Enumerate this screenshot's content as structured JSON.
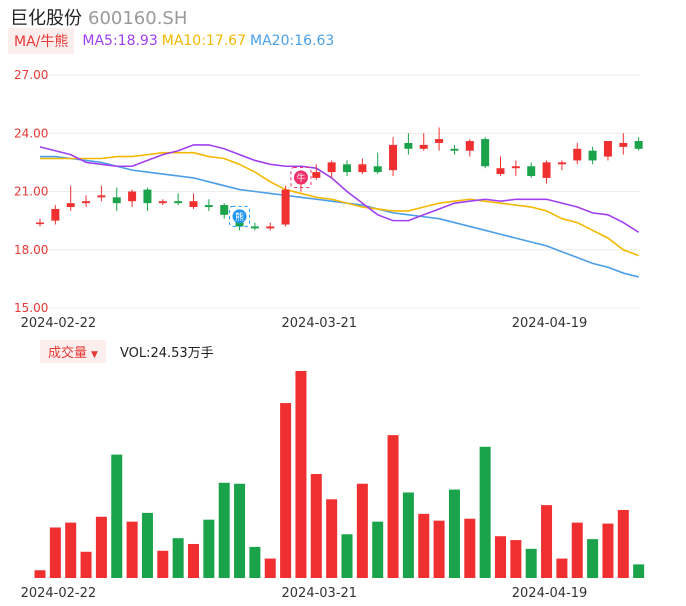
{
  "header": {
    "name": "巨化股份",
    "code": "600160.SH"
  },
  "ma_legend": {
    "tag": "MA/牛熊",
    "items": [
      {
        "label": "MA5:18.93",
        "color": "#a040f0"
      },
      {
        "label": "MA10:17.67",
        "color": "#f5b800"
      },
      {
        "label": "MA20:16.63",
        "color": "#4a9fe8"
      }
    ]
  },
  "volume_legend": {
    "tag": "成交量",
    "text": "VOL:24.53万手"
  },
  "colors": {
    "up": "#f03030",
    "down": "#1aa34a",
    "ma5": "#a040f0",
    "ma10": "#f5b800",
    "ma20": "#4a9fe8",
    "axis": "#e53935"
  },
  "markers": [
    {
      "day": 13,
      "icon": "bear-badge-icon",
      "text": "熊",
      "color": "#2196f3"
    },
    {
      "day": 17,
      "icon": "bull-badge-icon",
      "text": "牛",
      "color": "#f0306a"
    }
  ],
  "chart_data": [
    {
      "type": "candlestick",
      "y_ticks": [
        "27.00",
        "24.00",
        "21.00",
        "18.00",
        "15.00"
      ],
      "ylim": [
        15,
        27
      ],
      "x_ticks": [
        {
          "label": "2024-02-22",
          "day": 1
        },
        {
          "label": "2024-03-21",
          "day": 18
        },
        {
          "label": "2024-04-19",
          "day": 33
        }
      ],
      "candles": [
        {
          "o": 19.4,
          "c": 19.4,
          "h": 19.6,
          "l": 19.2
        },
        {
          "o": 19.5,
          "c": 20.1,
          "h": 20.3,
          "l": 19.3
        },
        {
          "o": 20.2,
          "c": 20.4,
          "h": 21.3,
          "l": 20.0
        },
        {
          "o": 20.4,
          "c": 20.5,
          "h": 20.8,
          "l": 20.2
        },
        {
          "o": 20.7,
          "c": 20.8,
          "h": 21.3,
          "l": 20.5
        },
        {
          "o": 20.7,
          "c": 20.4,
          "h": 21.2,
          "l": 20.0
        },
        {
          "o": 20.5,
          "c": 21.0,
          "h": 21.1,
          "l": 20.2
        },
        {
          "o": 21.1,
          "c": 20.4,
          "h": 21.2,
          "l": 20.0
        },
        {
          "o": 20.4,
          "c": 20.5,
          "h": 20.6,
          "l": 20.3
        },
        {
          "o": 20.5,
          "c": 20.4,
          "h": 20.9,
          "l": 20.3
        },
        {
          "o": 20.2,
          "c": 20.5,
          "h": 20.9,
          "l": 20.1
        },
        {
          "o": 20.3,
          "c": 20.2,
          "h": 20.6,
          "l": 20.0
        },
        {
          "o": 20.3,
          "c": 19.8,
          "h": 20.4,
          "l": 19.6
        },
        {
          "o": 19.8,
          "c": 19.2,
          "h": 20.0,
          "l": 19.0
        },
        {
          "o": 19.2,
          "c": 19.1,
          "h": 19.4,
          "l": 19.0
        },
        {
          "o": 19.1,
          "c": 19.2,
          "h": 19.4,
          "l": 19.0
        },
        {
          "o": 19.3,
          "c": 21.1,
          "h": 21.3,
          "l": 19.2
        },
        {
          "o": 21.4,
          "c": 21.8,
          "h": 22.1,
          "l": 21.0
        },
        {
          "o": 21.7,
          "c": 22.0,
          "h": 22.4,
          "l": 21.6
        },
        {
          "o": 22.0,
          "c": 22.5,
          "h": 22.6,
          "l": 21.7
        },
        {
          "o": 22.4,
          "c": 22.0,
          "h": 22.6,
          "l": 21.8
        },
        {
          "o": 22.0,
          "c": 22.4,
          "h": 22.7,
          "l": 21.9
        },
        {
          "o": 22.3,
          "c": 22.0,
          "h": 23.0,
          "l": 21.9
        },
        {
          "o": 22.1,
          "c": 23.4,
          "h": 23.8,
          "l": 21.8
        },
        {
          "o": 23.5,
          "c": 23.2,
          "h": 24.0,
          "l": 22.9
        },
        {
          "o": 23.2,
          "c": 23.4,
          "h": 24.0,
          "l": 23.1
        },
        {
          "o": 23.5,
          "c": 23.7,
          "h": 24.3,
          "l": 23.1
        },
        {
          "o": 23.2,
          "c": 23.1,
          "h": 23.4,
          "l": 22.9
        },
        {
          "o": 23.1,
          "c": 23.6,
          "h": 23.7,
          "l": 22.8
        },
        {
          "o": 23.7,
          "c": 22.3,
          "h": 23.8,
          "l": 22.2
        },
        {
          "o": 21.9,
          "c": 22.2,
          "h": 22.8,
          "l": 21.8
        },
        {
          "o": 22.2,
          "c": 22.3,
          "h": 22.6,
          "l": 21.8
        },
        {
          "o": 22.3,
          "c": 21.8,
          "h": 22.5,
          "l": 21.7
        },
        {
          "o": 21.7,
          "c": 22.5,
          "h": 22.6,
          "l": 21.4
        },
        {
          "o": 22.4,
          "c": 22.5,
          "h": 22.6,
          "l": 22.1
        },
        {
          "o": 22.6,
          "c": 23.2,
          "h": 23.5,
          "l": 22.4
        },
        {
          "o": 23.1,
          "c": 22.6,
          "h": 23.3,
          "l": 22.4
        },
        {
          "o": 22.8,
          "c": 23.6,
          "h": 23.6,
          "l": 22.6
        },
        {
          "o": 23.3,
          "c": 23.5,
          "h": 24.0,
          "l": 22.9
        },
        {
          "o": 23.6,
          "c": 23.2,
          "h": 23.8,
          "l": 23.1
        }
      ],
      "ma5": [
        23.3,
        23.1,
        22.9,
        22.5,
        22.4,
        22.3,
        22.3,
        22.6,
        22.9,
        23.1,
        23.4,
        23.4,
        23.2,
        22.9,
        22.6,
        22.4,
        22.3,
        22.3,
        22.2,
        21.7,
        21.0,
        20.4,
        19.8,
        19.5,
        19.5,
        19.8,
        20.1,
        20.4,
        20.5,
        20.6,
        20.5,
        20.6,
        20.6,
        20.6,
        20.4,
        20.2,
        19.9,
        19.8,
        19.4,
        18.9
      ],
      "ma10": [
        22.7,
        22.7,
        22.7,
        22.7,
        22.7,
        22.8,
        22.8,
        22.9,
        23.0,
        23.0,
        23.0,
        22.8,
        22.7,
        22.4,
        22.0,
        21.5,
        21.1,
        20.9,
        20.7,
        20.6,
        20.4,
        20.2,
        20.1,
        20.0,
        20.0,
        20.2,
        20.4,
        20.5,
        20.6,
        20.5,
        20.4,
        20.3,
        20.2,
        20.0,
        19.6,
        19.4,
        19.0,
        18.6,
        18.0,
        17.7
      ],
      "ma20": [
        22.8,
        22.8,
        22.7,
        22.6,
        22.5,
        22.3,
        22.1,
        22.0,
        21.9,
        21.8,
        21.7,
        21.5,
        21.3,
        21.1,
        21.0,
        20.9,
        20.8,
        20.7,
        20.6,
        20.5,
        20.4,
        20.3,
        20.1,
        19.9,
        19.8,
        19.7,
        19.6,
        19.4,
        19.2,
        19.0,
        18.8,
        18.6,
        18.4,
        18.2,
        17.9,
        17.6,
        17.3,
        17.1,
        16.8,
        16.6
      ]
    },
    {
      "type": "bar",
      "name": "成交量",
      "x_ticks": [
        "2024-02-22",
        "2024-03-21",
        "2024-04-19"
      ],
      "volumes": [
        8,
        52,
        57,
        27,
        63,
        127,
        58,
        67,
        28,
        41,
        35,
        60,
        98,
        97,
        32,
        20,
        180,
        213,
        107,
        81,
        45,
        97,
        58,
        147,
        88,
        66,
        59,
        91,
        61,
        135,
        43,
        39,
        30,
        75,
        20,
        57,
        40,
        56,
        70,
        14
      ]
    }
  ]
}
